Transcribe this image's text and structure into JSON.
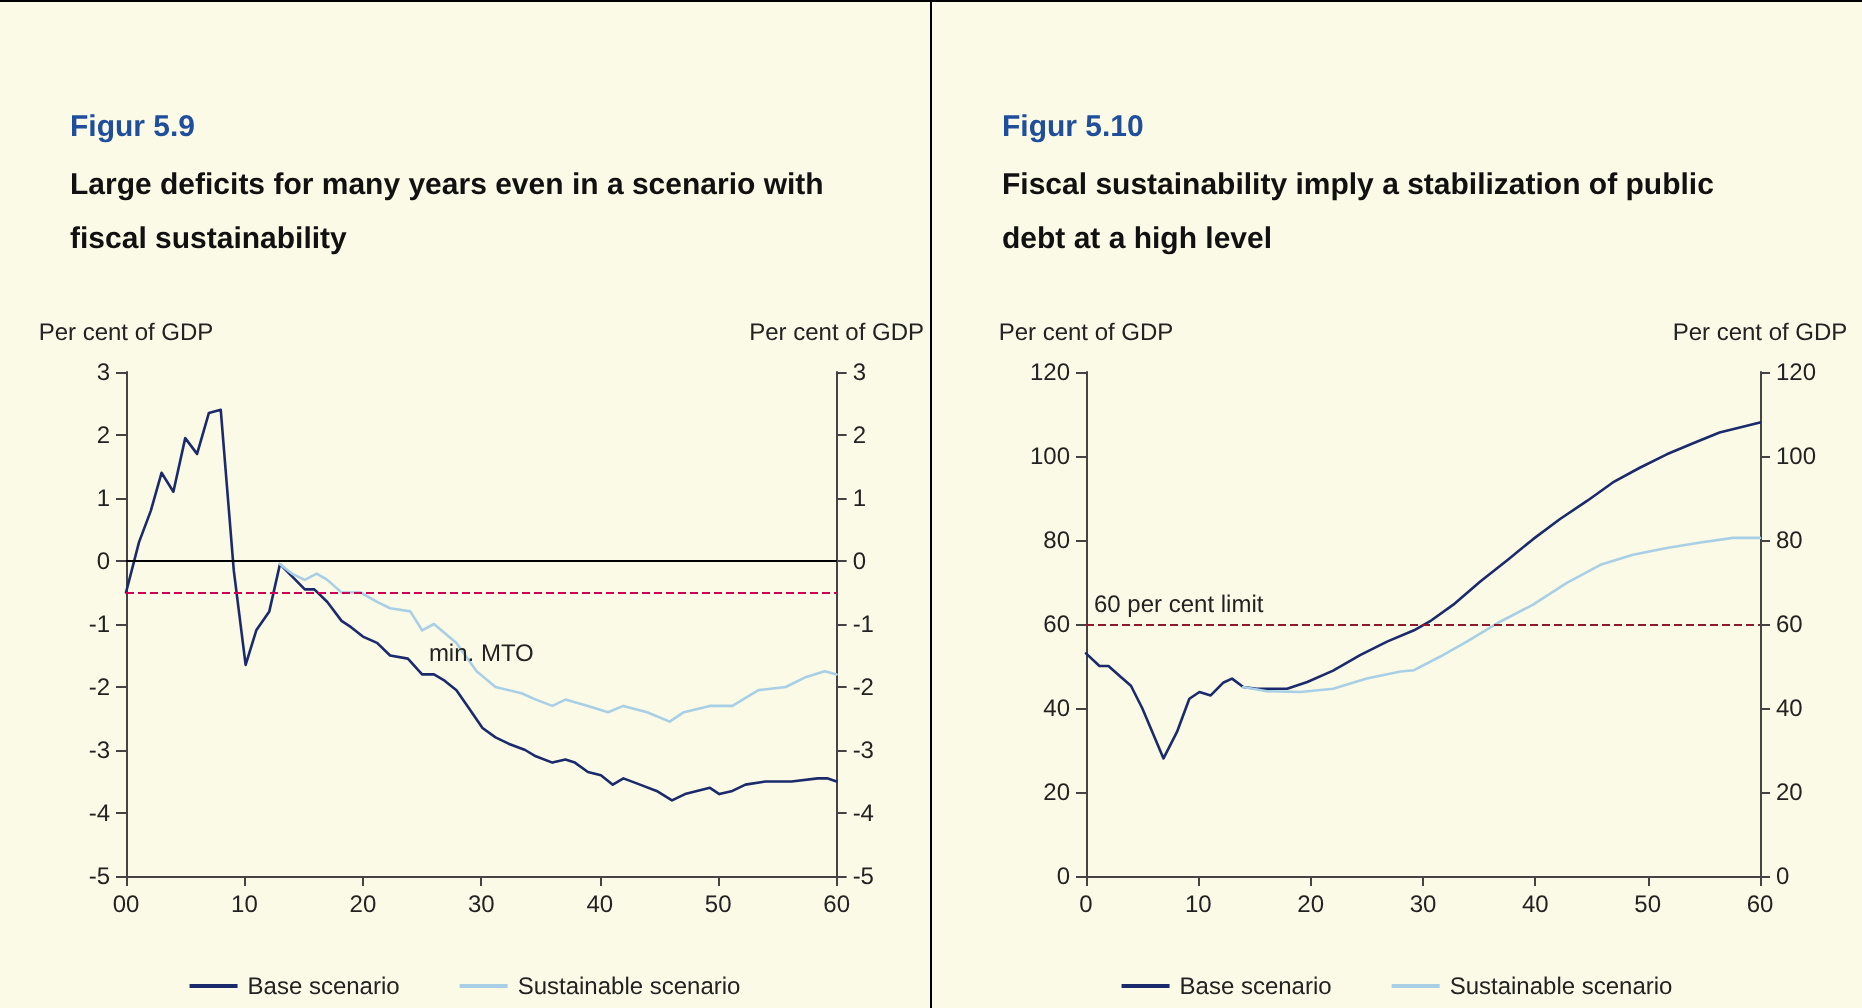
{
  "chart_data": [
    {
      "type": "line",
      "title": "Figur 5.9",
      "subtitle": "Large deficits for many years even in a scenario with fiscal sustainability",
      "ylabel": "Per cent of GDP",
      "y2label": "Per cent of GDP",
      "xlim": [
        0,
        60
      ],
      "xticks": [
        {
          "value": 0,
          "label": "00"
        },
        10,
        20,
        30,
        40,
        50,
        60
      ],
      "ylim": [
        -5,
        3
      ],
      "yticks": [
        -5,
        -4,
        -3,
        -2,
        -1,
        0,
        1,
        2,
        3
      ],
      "y2lim": [
        -5,
        3
      ],
      "y2ticks": [
        -5,
        -4,
        -3,
        -2,
        -1,
        0,
        1,
        2,
        3
      ],
      "grid": false,
      "legend": "bottom",
      "marker": "none",
      "line_style": "solid",
      "ref_lines": [
        {
          "axis": "y",
          "value": 0,
          "label": null,
          "color": "#000000",
          "line_style": "solid"
        },
        {
          "axis": "y",
          "value": -0.5,
          "label": "min. MTO",
          "color": "#cc0055",
          "line_style": "dashed"
        }
      ],
      "series": [
        {
          "name": "Base scenario",
          "color": "#1a2a6c",
          "x": [
            0,
            1.1,
            2.1,
            3,
            4,
            5,
            6,
            7,
            8,
            9.1,
            10.1,
            11,
            12.1,
            13,
            15.1,
            15.9,
            17,
            18.2,
            19,
            20,
            21.2,
            22.3,
            23.8,
            25,
            26,
            26.9,
            27.9,
            29,
            30.1,
            31.2,
            32.3,
            33.7,
            34.6,
            36,
            37.1,
            37.9,
            39,
            40.1,
            41.1,
            42,
            43.4,
            44.8,
            46.1,
            47.2,
            49.3,
            50.1,
            51.2,
            52.3,
            54,
            56.2,
            58.4,
            59.2,
            60
          ],
          "values": [
            -0.5,
            0.3,
            0.8,
            1.4,
            1.1,
            1.95,
            1.7,
            2.35,
            2.4,
            -0.15,
            -1.65,
            -1.1,
            -0.8,
            -0.05,
            -0.45,
            -0.45,
            -0.65,
            -0.95,
            -1.05,
            -1.2,
            -1.3,
            -1.5,
            -1.55,
            -1.8,
            -1.8,
            -1.9,
            -2.05,
            -2.35,
            -2.65,
            -2.8,
            -2.9,
            -3,
            -3.1,
            -3.2,
            -3.15,
            -3.2,
            -3.35,
            -3.4,
            -3.55,
            -3.45,
            -3.55,
            -3.65,
            -3.8,
            -3.7,
            -3.6,
            -3.7,
            -3.65,
            -3.55,
            -3.5,
            -3.5,
            -3.45,
            -3.45,
            -3.5
          ]
        },
        {
          "name": "Sustainable scenario",
          "color": "#a8cfe6",
          "x": [
            13,
            14,
            15.1,
            16.1,
            17,
            18.2,
            19.8,
            21.2,
            22.3,
            24,
            25,
            26,
            27.9,
            29.6,
            31.2,
            33.4,
            34.6,
            36,
            37.1,
            39,
            40.7,
            42,
            44,
            45.9,
            47.1,
            49.3,
            51.2,
            53.4,
            55.7,
            57.3,
            59,
            60
          ],
          "values": [
            -0.05,
            -0.2,
            -0.3,
            -0.2,
            -0.3,
            -0.5,
            -0.5,
            -0.65,
            -0.75,
            -0.8,
            -1.1,
            -1,
            -1.3,
            -1.75,
            -2,
            -2.1,
            -2.2,
            -2.3,
            -2.2,
            -2.3,
            -2.4,
            -2.3,
            -2.4,
            -2.55,
            -2.4,
            -2.3,
            -2.3,
            -2.05,
            -2,
            -1.85,
            -1.75,
            -1.8
          ]
        }
      ]
    },
    {
      "type": "line",
      "title": "Figur 5.10",
      "subtitle": "Fiscal sustainability imply a stabilization of public debt at a high level",
      "ylabel": "Per cent of GDP",
      "y2label": "Per cent of GDP",
      "xlim": [
        0,
        60
      ],
      "xticks": [
        0,
        10,
        20,
        30,
        40,
        50,
        60
      ],
      "ylim": [
        0,
        120
      ],
      "yticks": [
        0,
        20,
        40,
        60,
        80,
        100,
        120
      ],
      "y2lim": [
        0,
        120
      ],
      "y2ticks": [
        0,
        20,
        40,
        60,
        80,
        100,
        120
      ],
      "grid": false,
      "legend": "bottom",
      "marker": "none",
      "line_style": "solid",
      "ref_lines": [
        {
          "axis": "y",
          "value": 60,
          "label": "60 per cent limit",
          "color": "#8b1a2e",
          "line_style": "dashed"
        }
      ],
      "series": [
        {
          "name": "Base scenario",
          "color": "#1a2a6c",
          "x": [
            0,
            1.2,
            2,
            3,
            4,
            5,
            6.9,
            8.1,
            9.2,
            10.1,
            11.1,
            12.2,
            13,
            14,
            15.2,
            17.9,
            19.7,
            22,
            24.4,
            26.8,
            29.2,
            30.6,
            32.7,
            35.1,
            37.5,
            39.8,
            42.2,
            44.6,
            46.9,
            49.3,
            51.7,
            54.1,
            56.4,
            60
          ],
          "values": [
            53,
            50,
            50,
            47.6,
            45.3,
            40,
            28,
            34.3,
            42.2,
            43.8,
            43,
            46,
            47,
            45,
            44.6,
            44.6,
            46.2,
            48.9,
            52.6,
            55.8,
            58.5,
            60.6,
            64.6,
            70.1,
            75.2,
            80.2,
            85,
            89.3,
            93.7,
            97.2,
            100.4,
            103.1,
            105.6,
            108
          ]
        },
        {
          "name": "Sustainable scenario",
          "color": "#a8cfe6",
          "x": [
            14,
            16.1,
            19.1,
            22,
            25,
            28,
            29.2,
            31.5,
            33.9,
            36.9,
            39.8,
            42.8,
            45.8,
            48.7,
            51.7,
            54.7,
            57.6,
            60
          ],
          "values": [
            45,
            44,
            43.8,
            44.6,
            47,
            48.7,
            49,
            52.2,
            55.8,
            60.6,
            64.6,
            69.8,
            74.1,
            76.5,
            78.1,
            79.4,
            80.5,
            80.5
          ]
        }
      ]
    }
  ]
}
